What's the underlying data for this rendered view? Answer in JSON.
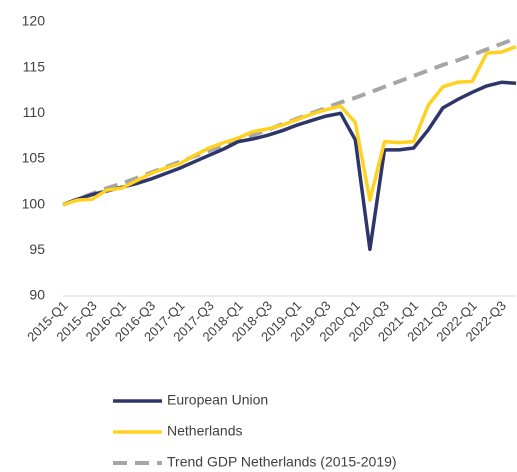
{
  "chart_data": {
    "type": "line",
    "categories": [
      "2015-Q1",
      null,
      "2015-Q3",
      null,
      "2016-Q1",
      null,
      "2016-Q3",
      null,
      "2017-Q1",
      null,
      "2017-Q3",
      null,
      "2018-Q1",
      null,
      "2018-Q3",
      null,
      "2019-Q1",
      null,
      "2019-Q3",
      null,
      "2020-Q1",
      null,
      "2020-Q3",
      null,
      "2021-Q1",
      null,
      "2021-Q3",
      null,
      "2022-Q1",
      null,
      "2022-Q3",
      null
    ],
    "series": [
      {
        "name": "European Union",
        "color": "#2e3669",
        "dashed": false,
        "values": [
          100,
          100.6,
          101.1,
          101.5,
          101.9,
          102.3,
          102.8,
          103.4,
          104.0,
          104.7,
          105.4,
          106.1,
          106.9,
          107.2,
          107.6,
          108.1,
          108.7,
          109.2,
          109.7,
          110.0,
          107.1,
          95.1,
          106.0,
          106.0,
          106.2,
          108.2,
          110.6,
          111.5,
          112.3,
          113.0,
          113.4,
          113.3
        ]
      },
      {
        "name": "Netherlands",
        "color": "#ffd21f",
        "dashed": false,
        "values": [
          100,
          100.5,
          100.6,
          101.6,
          101.8,
          102.6,
          103.4,
          104.0,
          104.5,
          105.4,
          106.2,
          106.8,
          107.3,
          108.0,
          108.3,
          108.7,
          109.3,
          109.9,
          110.4,
          110.8,
          109.0,
          100.5,
          106.9,
          106.8,
          106.9,
          110.9,
          112.9,
          113.4,
          113.5,
          116.6,
          116.7,
          117.3
        ]
      },
      {
        "name": "Trend GDP Netherlands (2015-2019)",
        "color": "#a6a6a6",
        "dashed": true,
        "values": [
          100,
          100.6,
          101.2,
          101.8,
          102.3,
          102.9,
          103.5,
          104.1,
          104.7,
          105.3,
          105.9,
          106.5,
          107.0,
          107.6,
          108.2,
          108.8,
          109.4,
          110.0,
          110.6,
          111.2,
          111.7,
          112.3,
          112.9,
          113.5,
          114.1,
          114.7,
          115.3,
          115.8,
          116.4,
          117.0,
          117.6,
          118.2
        ]
      }
    ],
    "ylim": [
      90,
      120
    ],
    "yticks": [
      90,
      95,
      100,
      105,
      110,
      115,
      120
    ],
    "grid": false
  }
}
